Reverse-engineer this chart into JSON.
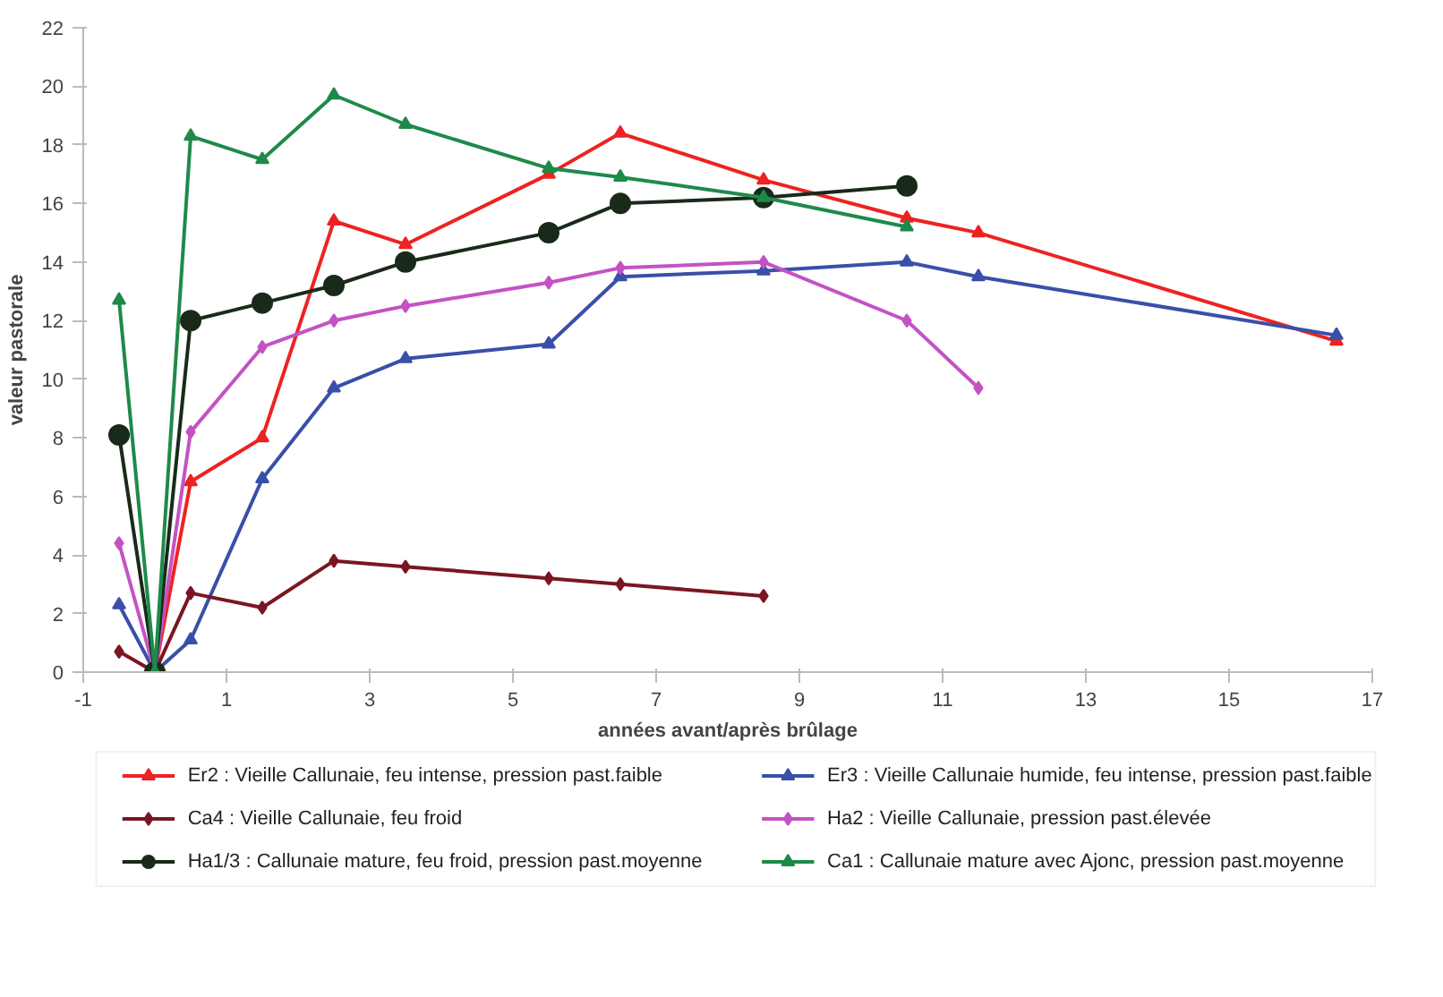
{
  "chart_data": {
    "type": "line",
    "xlabel": "années avant/après brûlage",
    "ylabel": "valeur pastorale",
    "xlim": [
      -1,
      17
    ],
    "xticks": [
      -1,
      1,
      3,
      5,
      7,
      9,
      11,
      13,
      15,
      17
    ],
    "ylim": [
      0,
      22
    ],
    "yticks": [
      0,
      2,
      4,
      6,
      8,
      10,
      12,
      14,
      16,
      18,
      20,
      22
    ],
    "grid": false,
    "legend": "bottom",
    "line_style": "solid",
    "series": [
      {
        "name": "Er2 : Vieille Callunaie, feu intense, pression past.faible",
        "color": "#ee2222",
        "marker": "triangle",
        "x": [
          0,
          0.5,
          1.5,
          2.5,
          3.5,
          5.5,
          6.5,
          8.5,
          10.5,
          11.5,
          16.5
        ],
        "values": [
          0,
          6.5,
          8,
          15.4,
          14.6,
          17,
          18.4,
          16.8,
          15.5,
          15,
          11.3
        ]
      },
      {
        "name": "Er3 : Vieille Callunaie humide, feu intense, pression past.faible",
        "color": "#3a4fa8",
        "marker": "triangle",
        "x": [
          -0.5,
          0,
          0.5,
          1.5,
          2.5,
          3.5,
          5.5,
          6.5,
          8.5,
          10.5,
          11.5,
          16.5
        ],
        "values": [
          2.3,
          0,
          1.1,
          6.6,
          9.7,
          10.7,
          11.2,
          13.5,
          13.7,
          14,
          13.5,
          11.5
        ]
      },
      {
        "name": "Ca4 : Vieille Callunaie, feu froid",
        "color": "#7a1622",
        "marker": "diamond",
        "x": [
          -0.5,
          0,
          0.5,
          1.5,
          2.5,
          3.5,
          5.5,
          6.5,
          8.5
        ],
        "values": [
          0.7,
          0,
          2.7,
          2.2,
          3.8,
          3.6,
          3.2,
          3,
          2.6
        ]
      },
      {
        "name": "Ha2 : Vieille Callunaie, pression past.élevée",
        "color": "#c452c4",
        "marker": "diamond",
        "x": [
          -0.5,
          0,
          0.5,
          1.5,
          2.5,
          3.5,
          5.5,
          6.5,
          8.5,
          10.5,
          11.5
        ],
        "values": [
          4.4,
          0,
          8.2,
          11.1,
          12,
          12.5,
          13.3,
          13.8,
          14,
          12,
          9.7
        ]
      },
      {
        "name": "Ha1/3 : Callunaie mature, feu froid, pression past.moyenne",
        "color": "#1a2a1a",
        "marker": "circle",
        "x": [
          -0.5,
          0,
          0.5,
          1.5,
          2.5,
          3.5,
          5.5,
          6.5,
          8.5,
          10.5
        ],
        "values": [
          8.1,
          0,
          12,
          12.6,
          13.2,
          14,
          15,
          16,
          16.2,
          16.6
        ]
      },
      {
        "name": "Ca1 : Callunaie mature avec Ajonc, pression past.moyenne",
        "color": "#1e8a4a",
        "marker": "triangle",
        "x": [
          -0.5,
          0,
          0.5,
          1.5,
          2.5,
          3.5,
          5.5,
          6.5,
          8.5,
          10.5
        ],
        "values": [
          12.7,
          0,
          18.3,
          17.5,
          19.7,
          18.7,
          17.2,
          16.9,
          16.2,
          15.2
        ]
      }
    ]
  }
}
